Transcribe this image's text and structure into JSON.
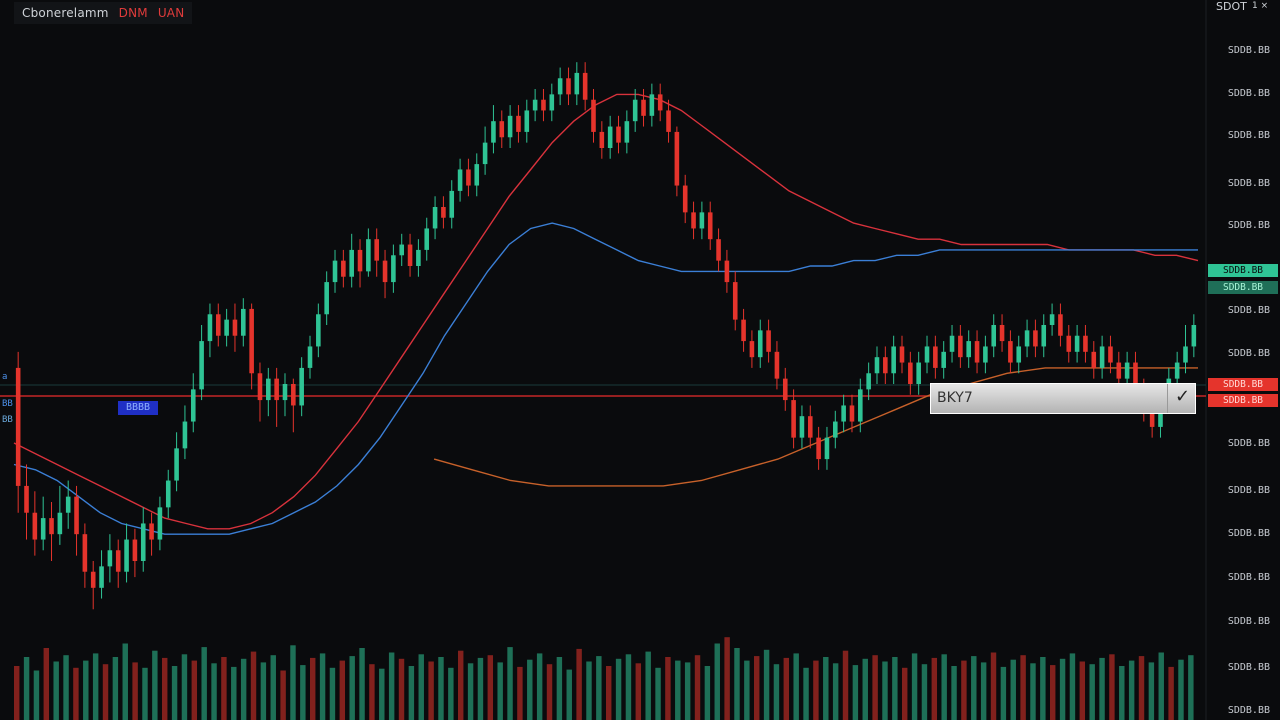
{
  "header": {
    "symbol": "Cbonerelamm",
    "timeframe": "DNM",
    "exchange": "UAN"
  },
  "top_right": {
    "label": "SDOT",
    "control": "1 ×"
  },
  "price_axis": {
    "labels": [
      "SDDB.BB",
      "SDDB.BB",
      "SDDB.BB",
      "SDDB.BB",
      "SDDB.BB",
      "SDDB.BB",
      "SDDB.BB",
      "SDDB.BB",
      "SDDB.BB",
      "SDDB.BB",
      "SDDB.BB",
      "SDDB.BB",
      "SDDB.BB",
      "SDDB.BB"
    ],
    "current_price_tag": "SDDB.BB",
    "current_price_tag2": "SDDB.BB",
    "order_price_tag": "SDDB.BB",
    "order_price_tag2": "SDDB.BB"
  },
  "left_tags": {
    "tag1": "a",
    "tag2": "BB",
    "tag3": "BB"
  },
  "blue_badge": "BBBB",
  "order_box": {
    "label": "BKY7",
    "confirm": "✓"
  },
  "colors": {
    "background": "#0a0b0d",
    "bullish": "#2fc495",
    "bearish": "#e5342c",
    "ma_red": "#d8323c",
    "ma_blue": "#3b7fd6",
    "ma_orange": "#c7612a",
    "level_line": "#c52626"
  },
  "chart_data": {
    "type": "candlestick",
    "candles": [
      {
        "o": 62,
        "c": 40,
        "h": 65,
        "l": 35
      },
      {
        "o": 40,
        "c": 35,
        "h": 44,
        "l": 30
      },
      {
        "o": 35,
        "c": 30,
        "h": 39,
        "l": 27
      },
      {
        "o": 30,
        "c": 34,
        "h": 38,
        "l": 28
      },
      {
        "o": 34,
        "c": 31,
        "h": 37,
        "l": 26
      },
      {
        "o": 31,
        "c": 35,
        "h": 40,
        "l": 29
      },
      {
        "o": 35,
        "c": 38,
        "h": 41,
        "l": 32
      },
      {
        "o": 38,
        "c": 31,
        "h": 40,
        "l": 27
      },
      {
        "o": 31,
        "c": 24,
        "h": 33,
        "l": 21
      },
      {
        "o": 24,
        "c": 21,
        "h": 26,
        "l": 17
      },
      {
        "o": 21,
        "c": 25,
        "h": 28,
        "l": 19
      },
      {
        "o": 25,
        "c": 28,
        "h": 31,
        "l": 22
      },
      {
        "o": 28,
        "c": 24,
        "h": 30,
        "l": 21
      },
      {
        "o": 24,
        "c": 30,
        "h": 33,
        "l": 22
      },
      {
        "o": 30,
        "c": 26,
        "h": 32,
        "l": 23
      },
      {
        "o": 26,
        "c": 33,
        "h": 36,
        "l": 24
      },
      {
        "o": 33,
        "c": 30,
        "h": 35,
        "l": 27
      },
      {
        "o": 30,
        "c": 36,
        "h": 38,
        "l": 28
      },
      {
        "o": 36,
        "c": 41,
        "h": 43,
        "l": 34
      },
      {
        "o": 41,
        "c": 47,
        "h": 50,
        "l": 39
      },
      {
        "o": 47,
        "c": 52,
        "h": 55,
        "l": 45
      },
      {
        "o": 52,
        "c": 58,
        "h": 61,
        "l": 50
      },
      {
        "o": 58,
        "c": 67,
        "h": 70,
        "l": 56
      },
      {
        "o": 67,
        "c": 72,
        "h": 74,
        "l": 64
      },
      {
        "o": 72,
        "c": 68,
        "h": 74,
        "l": 66
      },
      {
        "o": 68,
        "c": 71,
        "h": 73,
        "l": 66
      },
      {
        "o": 71,
        "c": 68,
        "h": 74,
        "l": 65
      },
      {
        "o": 68,
        "c": 73,
        "h": 75,
        "l": 66
      },
      {
        "o": 73,
        "c": 61,
        "h": 74,
        "l": 58
      },
      {
        "o": 61,
        "c": 56,
        "h": 63,
        "l": 52
      },
      {
        "o": 56,
        "c": 60,
        "h": 62,
        "l": 53
      },
      {
        "o": 60,
        "c": 56,
        "h": 62,
        "l": 51
      },
      {
        "o": 56,
        "c": 59,
        "h": 61,
        "l": 53
      },
      {
        "o": 59,
        "c": 55,
        "h": 60,
        "l": 50
      },
      {
        "o": 55,
        "c": 62,
        "h": 64,
        "l": 53
      },
      {
        "o": 62,
        "c": 66,
        "h": 68,
        "l": 60
      },
      {
        "o": 66,
        "c": 72,
        "h": 74,
        "l": 64
      },
      {
        "o": 72,
        "c": 78,
        "h": 80,
        "l": 70
      },
      {
        "o": 78,
        "c": 82,
        "h": 84,
        "l": 76
      },
      {
        "o": 82,
        "c": 79,
        "h": 84,
        "l": 77
      },
      {
        "o": 79,
        "c": 84,
        "h": 87,
        "l": 77
      },
      {
        "o": 84,
        "c": 80,
        "h": 86,
        "l": 77
      },
      {
        "o": 80,
        "c": 86,
        "h": 88,
        "l": 79
      },
      {
        "o": 86,
        "c": 82,
        "h": 88,
        "l": 79
      },
      {
        "o": 82,
        "c": 78,
        "h": 84,
        "l": 75
      },
      {
        "o": 78,
        "c": 83,
        "h": 85,
        "l": 76
      },
      {
        "o": 83,
        "c": 85,
        "h": 87,
        "l": 81
      },
      {
        "o": 85,
        "c": 81,
        "h": 87,
        "l": 79
      },
      {
        "o": 81,
        "c": 84,
        "h": 86,
        "l": 79
      },
      {
        "o": 84,
        "c": 88,
        "h": 90,
        "l": 82
      },
      {
        "o": 88,
        "c": 92,
        "h": 94,
        "l": 86
      },
      {
        "o": 92,
        "c": 90,
        "h": 94,
        "l": 88
      },
      {
        "o": 90,
        "c": 95,
        "h": 97,
        "l": 88
      },
      {
        "o": 95,
        "c": 99,
        "h": 101,
        "l": 93
      },
      {
        "o": 99,
        "c": 96,
        "h": 101,
        "l": 94
      },
      {
        "o": 96,
        "c": 100,
        "h": 102,
        "l": 94
      },
      {
        "o": 100,
        "c": 104,
        "h": 107,
        "l": 98
      },
      {
        "o": 104,
        "c": 108,
        "h": 111,
        "l": 102
      },
      {
        "o": 108,
        "c": 105,
        "h": 110,
        "l": 103
      },
      {
        "o": 105,
        "c": 109,
        "h": 111,
        "l": 103
      },
      {
        "o": 109,
        "c": 106,
        "h": 111,
        "l": 104
      },
      {
        "o": 106,
        "c": 110,
        "h": 112,
        "l": 104
      },
      {
        "o": 110,
        "c": 112,
        "h": 114,
        "l": 108
      },
      {
        "o": 112,
        "c": 110,
        "h": 114,
        "l": 108
      },
      {
        "o": 110,
        "c": 113,
        "h": 115,
        "l": 108
      },
      {
        "o": 113,
        "c": 116,
        "h": 118,
        "l": 111
      },
      {
        "o": 116,
        "c": 113,
        "h": 118,
        "l": 111
      },
      {
        "o": 113,
        "c": 117,
        "h": 119,
        "l": 111
      },
      {
        "o": 117,
        "c": 112,
        "h": 119,
        "l": 110
      },
      {
        "o": 112,
        "c": 106,
        "h": 114,
        "l": 104
      },
      {
        "o": 106,
        "c": 103,
        "h": 108,
        "l": 101
      },
      {
        "o": 103,
        "c": 107,
        "h": 109,
        "l": 101
      },
      {
        "o": 107,
        "c": 104,
        "h": 109,
        "l": 102
      },
      {
        "o": 104,
        "c": 108,
        "h": 110,
        "l": 102
      },
      {
        "o": 108,
        "c": 112,
        "h": 114,
        "l": 106
      },
      {
        "o": 112,
        "c": 109,
        "h": 114,
        "l": 107
      },
      {
        "o": 109,
        "c": 113,
        "h": 115,
        "l": 107
      },
      {
        "o": 113,
        "c": 110,
        "h": 115,
        "l": 108
      },
      {
        "o": 110,
        "c": 106,
        "h": 112,
        "l": 104
      },
      {
        "o": 106,
        "c": 96,
        "h": 107,
        "l": 94
      },
      {
        "o": 96,
        "c": 91,
        "h": 98,
        "l": 89
      },
      {
        "o": 91,
        "c": 88,
        "h": 93,
        "l": 86
      },
      {
        "o": 88,
        "c": 91,
        "h": 93,
        "l": 86
      },
      {
        "o": 91,
        "c": 86,
        "h": 93,
        "l": 84
      },
      {
        "o": 86,
        "c": 82,
        "h": 88,
        "l": 80
      },
      {
        "o": 82,
        "c": 78,
        "h": 84,
        "l": 76
      },
      {
        "o": 78,
        "c": 71,
        "h": 80,
        "l": 69
      },
      {
        "o": 71,
        "c": 67,
        "h": 73,
        "l": 65
      },
      {
        "o": 67,
        "c": 64,
        "h": 69,
        "l": 62
      },
      {
        "o": 64,
        "c": 69,
        "h": 71,
        "l": 62
      },
      {
        "o": 69,
        "c": 65,
        "h": 71,
        "l": 63
      },
      {
        "o": 65,
        "c": 60,
        "h": 67,
        "l": 58
      },
      {
        "o": 60,
        "c": 56,
        "h": 62,
        "l": 54
      },
      {
        "o": 56,
        "c": 49,
        "h": 58,
        "l": 47
      },
      {
        "o": 49,
        "c": 53,
        "h": 55,
        "l": 47
      },
      {
        "o": 53,
        "c": 49,
        "h": 55,
        "l": 47
      },
      {
        "o": 49,
        "c": 45,
        "h": 51,
        "l": 43
      },
      {
        "o": 45,
        "c": 49,
        "h": 51,
        "l": 43
      },
      {
        "o": 49,
        "c": 52,
        "h": 54,
        "l": 47
      },
      {
        "o": 52,
        "c": 55,
        "h": 57,
        "l": 50
      },
      {
        "o": 55,
        "c": 52,
        "h": 57,
        "l": 50
      },
      {
        "o": 52,
        "c": 58,
        "h": 60,
        "l": 50
      },
      {
        "o": 58,
        "c": 61,
        "h": 63,
        "l": 56
      },
      {
        "o": 61,
        "c": 64,
        "h": 66,
        "l": 59
      },
      {
        "o": 64,
        "c": 61,
        "h": 66,
        "l": 59
      },
      {
        "o": 61,
        "c": 66,
        "h": 68,
        "l": 59
      },
      {
        "o": 66,
        "c": 63,
        "h": 68,
        "l": 61
      },
      {
        "o": 63,
        "c": 59,
        "h": 65,
        "l": 57
      },
      {
        "o": 59,
        "c": 63,
        "h": 65,
        "l": 57
      },
      {
        "o": 63,
        "c": 66,
        "h": 68,
        "l": 61
      },
      {
        "o": 66,
        "c": 62,
        "h": 68,
        "l": 60
      },
      {
        "o": 62,
        "c": 65,
        "h": 67,
        "l": 60
      },
      {
        "o": 65,
        "c": 68,
        "h": 70,
        "l": 63
      },
      {
        "o": 68,
        "c": 64,
        "h": 70,
        "l": 62
      },
      {
        "o": 64,
        "c": 67,
        "h": 69,
        "l": 62
      },
      {
        "o": 67,
        "c": 63,
        "h": 69,
        "l": 61
      },
      {
        "o": 63,
        "c": 66,
        "h": 68,
        "l": 61
      },
      {
        "o": 66,
        "c": 70,
        "h": 72,
        "l": 64
      },
      {
        "o": 70,
        "c": 67,
        "h": 72,
        "l": 65
      },
      {
        "o": 67,
        "c": 63,
        "h": 69,
        "l": 61
      },
      {
        "o": 63,
        "c": 66,
        "h": 68,
        "l": 61
      },
      {
        "o": 66,
        "c": 69,
        "h": 71,
        "l": 64
      },
      {
        "o": 69,
        "c": 66,
        "h": 71,
        "l": 64
      },
      {
        "o": 66,
        "c": 70,
        "h": 72,
        "l": 64
      },
      {
        "o": 70,
        "c": 72,
        "h": 74,
        "l": 68
      },
      {
        "o": 72,
        "c": 68,
        "h": 74,
        "l": 66
      },
      {
        "o": 68,
        "c": 65,
        "h": 70,
        "l": 63
      },
      {
        "o": 65,
        "c": 68,
        "h": 70,
        "l": 63
      },
      {
        "o": 68,
        "c": 65,
        "h": 70,
        "l": 63
      },
      {
        "o": 65,
        "c": 62,
        "h": 67,
        "l": 60
      },
      {
        "o": 62,
        "c": 66,
        "h": 68,
        "l": 60
      },
      {
        "o": 66,
        "c": 63,
        "h": 68,
        "l": 61
      },
      {
        "o": 63,
        "c": 60,
        "h": 65,
        "l": 58
      },
      {
        "o": 60,
        "c": 63,
        "h": 65,
        "l": 58
      },
      {
        "o": 63,
        "c": 58,
        "h": 65,
        "l": 56
      },
      {
        "o": 58,
        "c": 54,
        "h": 60,
        "l": 52
      },
      {
        "o": 54,
        "c": 51,
        "h": 56,
        "l": 49
      },
      {
        "o": 51,
        "c": 56,
        "h": 58,
        "l": 49
      },
      {
        "o": 56,
        "c": 60,
        "h": 62,
        "l": 54
      },
      {
        "o": 60,
        "c": 63,
        "h": 65,
        "l": 58
      },
      {
        "o": 63,
        "c": 66,
        "h": 70,
        "l": 61
      },
      {
        "o": 66,
        "c": 70,
        "h": 72,
        "l": 64
      }
    ],
    "moving_averages": [
      {
        "color_key": "ma_red",
        "values": [
          48,
          46,
          44,
          42,
          40,
          38,
          36,
          34,
          33,
          32,
          32,
          33,
          35,
          38,
          42,
          47,
          52,
          58,
          64,
          70,
          76,
          82,
          88,
          94,
          99,
          104,
          108,
          111,
          113,
          113,
          112,
          110,
          107,
          104,
          101,
          98,
          95,
          93,
          91,
          89,
          88,
          87,
          86,
          86,
          85,
          85,
          85,
          85,
          85,
          84,
          84,
          84,
          84,
          83,
          83,
          82
        ]
      },
      {
        "color_key": "ma_blue",
        "values": [
          44,
          43,
          41,
          38,
          35,
          33,
          32,
          31,
          31,
          31,
          31,
          32,
          33,
          35,
          37,
          40,
          44,
          49,
          55,
          61,
          68,
          74,
          80,
          85,
          88,
          89,
          88,
          86,
          84,
          82,
          81,
          80,
          80,
          80,
          80,
          80,
          80,
          81,
          81,
          82,
          82,
          83,
          83,
          84,
          84,
          84,
          84,
          84,
          84,
          84,
          84,
          84,
          84,
          84,
          84,
          84
        ]
      },
      {
        "color_key": "ma_orange",
        "values": [
          null,
          null,
          null,
          null,
          null,
          null,
          null,
          null,
          null,
          null,
          null,
          45,
          43,
          41,
          40,
          40,
          40,
          40,
          41,
          43,
          45,
          48,
          51,
          54,
          57,
          59,
          61,
          62,
          62,
          62,
          62,
          62
        ]
      }
    ],
    "levels": [
      {
        "value": 62,
        "color_key": "level_line"
      }
    ],
    "volume": [
      60,
      70,
      55,
      80,
      65,
      72,
      58,
      66,
      74,
      62,
      70,
      85,
      64,
      58,
      77,
      69,
      60,
      73,
      66,
      81,
      63,
      70,
      59,
      68,
      76,
      64,
      72,
      55,
      83,
      61,
      69,
      74,
      58,
      66,
      71,
      80,
      62,
      57,
      75,
      68,
      60,
      73,
      65,
      70,
      58,
      77,
      63,
      69,
      72,
      64,
      81,
      59,
      67,
      74,
      62,
      70,
      56,
      79,
      65,
      71,
      60,
      68,
      73,
      63,
      76,
      58,
      70,
      66,
      64,
      72,
      60,
      85,
      92,
      80,
      66,
      71,
      78,
      62,
      69,
      74,
      58,
      66,
      70,
      63,
      77,
      61,
      68,
      72,
      65,
      70,
      58,
      74,
      62,
      69,
      73,
      60,
      66,
      71,
      64,
      75,
      59,
      67,
      72,
      63,
      70,
      61,
      68,
      74,
      65,
      62,
      69,
      73,
      60,
      66,
      71,
      64,
      75,
      59,
      67,
      72
    ]
  }
}
